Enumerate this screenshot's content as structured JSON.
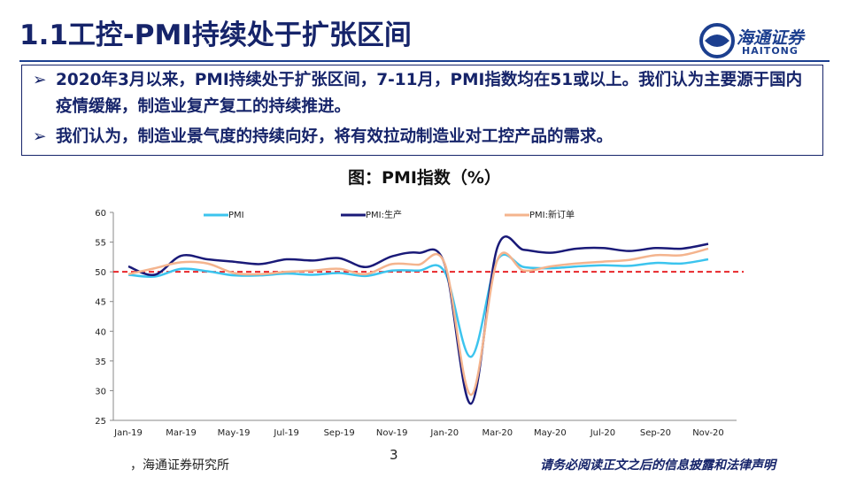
{
  "header": {
    "title": "1.1工控-PMI持续处于扩张区间",
    "logo_cn": "海通证券",
    "logo_en": "HAITONG"
  },
  "bullets": [
    "2020年3月以来，PMI持续处于扩张区间，7-11月，PMI指数均在51或以上。我们认为主要源于国内疫情缓解，制造业复产复工的持续推进。",
    "我们认为，制造业景气度的持续向好，将有效拉动制造业对工控产品的需求。"
  ],
  "bullet_marker": "➢",
  "chart_data": {
    "type": "line",
    "title": "图：PMI指数（%）",
    "categories": [
      "Jan-19",
      null,
      "Mar-19",
      null,
      "May-19",
      null,
      "Jul-19",
      null,
      "Sep-19",
      null,
      "Nov-19",
      null,
      "Jan-20",
      null,
      "Mar-20",
      null,
      "May-20",
      null,
      "Jul-20",
      null,
      "Sep-20",
      null,
      "Nov-20"
    ],
    "series": [
      {
        "name": "PMI",
        "color": "#3cc4ee",
        "values": [
          49.5,
          49.2,
          50.5,
          50.1,
          49.4,
          49.4,
          49.7,
          49.5,
          49.8,
          49.3,
          50.2,
          50.2,
          50.0,
          35.7,
          52.0,
          50.8,
          50.6,
          50.9,
          51.1,
          51.0,
          51.5,
          51.4,
          52.1
        ]
      },
      {
        "name": "PMI:生产",
        "color": "#1a1a78",
        "values": [
          50.9,
          49.5,
          52.7,
          52.1,
          51.7,
          51.3,
          52.1,
          51.9,
          52.3,
          50.8,
          52.6,
          53.2,
          51.3,
          27.8,
          54.1,
          53.7,
          53.2,
          53.9,
          54.0,
          53.5,
          54.0,
          53.9,
          54.7
        ]
      },
      {
        "name": "PMI:新订单",
        "color": "#f4b48e",
        "values": [
          49.6,
          50.6,
          51.6,
          51.4,
          49.8,
          49.6,
          50.0,
          50.2,
          50.5,
          49.6,
          51.3,
          51.2,
          51.4,
          29.3,
          52.0,
          50.2,
          50.9,
          51.4,
          51.7,
          52.0,
          52.8,
          52.8,
          53.9
        ]
      }
    ],
    "ylim": [
      25,
      60
    ],
    "yticks": [
      25,
      30,
      35,
      40,
      45,
      50,
      55,
      60
    ],
    "reference_line": {
      "value": 50,
      "color": "#e8262a"
    }
  },
  "footer": {
    "source": "，海通证券研究所",
    "page": "3",
    "disclaimer": "请务必阅读正文之后的信息披露和法律声明"
  }
}
